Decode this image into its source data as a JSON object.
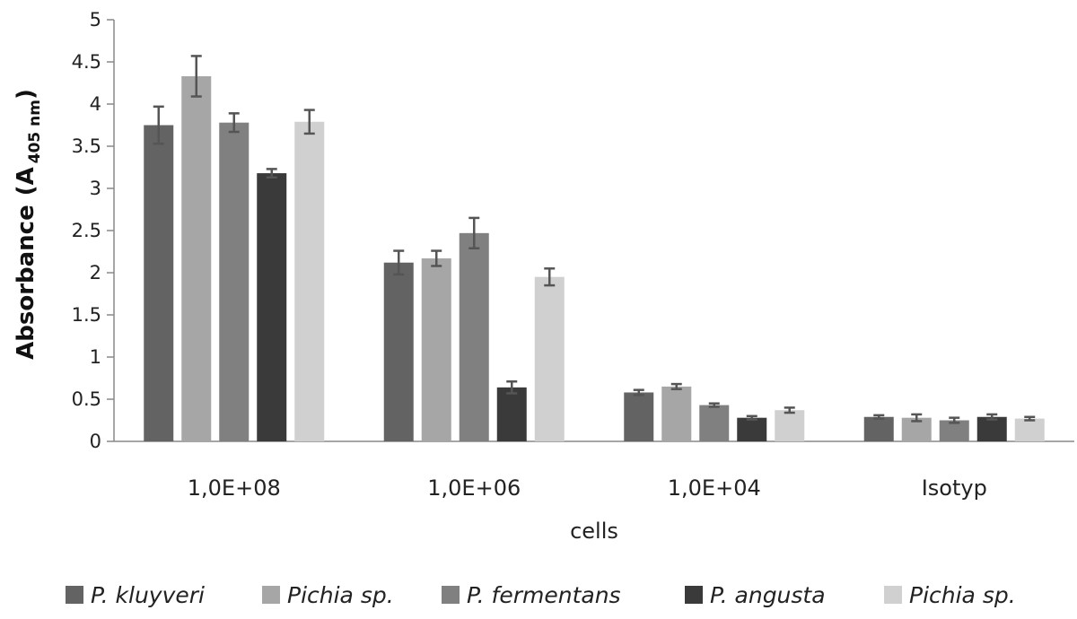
{
  "chart_data": {
    "type": "bar",
    "title": "",
    "xlabel": "cells",
    "ylabel": {
      "main": "Absorbance",
      "paren_open": "(",
      "symbol": "A",
      "subscript": "405 nm",
      "paren_close": ")"
    },
    "ylim": [
      0,
      5
    ],
    "yticks": [
      0,
      0.5,
      1,
      1.5,
      2,
      2.5,
      3,
      3.5,
      4,
      4.5,
      5
    ],
    "ytick_labels": [
      "0",
      "0.5",
      "1",
      "1.5",
      "2",
      "2.5",
      "3",
      "3.5",
      "4",
      "4.5",
      "5"
    ],
    "categories": [
      "1,0E+08",
      "1,0E+06",
      "1,0E+04",
      "Isotyp"
    ],
    "legend_position": "bottom",
    "grid": false,
    "error_bar_color": "#555555",
    "series": [
      {
        "name": "P. kluyveri",
        "color": "#636363",
        "values": [
          3.75,
          2.12,
          0.58,
          0.29
        ],
        "errors": [
          0.22,
          0.14,
          0.03,
          0.02
        ]
      },
      {
        "name": "Pichia sp.",
        "color": "#a6a6a6",
        "values": [
          4.33,
          2.17,
          0.65,
          0.28
        ],
        "errors": [
          0.24,
          0.09,
          0.03,
          0.04
        ]
      },
      {
        "name": "P. fermentans",
        "color": "#808080",
        "values": [
          3.78,
          2.47,
          0.43,
          0.25
        ],
        "errors": [
          0.11,
          0.18,
          0.02,
          0.03
        ]
      },
      {
        "name": "P. angusta",
        "color": "#3a3a3a",
        "values": [
          3.18,
          0.64,
          0.28,
          0.29
        ],
        "errors": [
          0.05,
          0.07,
          0.02,
          0.03
        ]
      },
      {
        "name": "Pichia sp.",
        "color": "#d0d0d0",
        "values": [
          3.79,
          1.95,
          0.37,
          0.27
        ],
        "errors": [
          0.14,
          0.1,
          0.03,
          0.02
        ]
      }
    ]
  }
}
